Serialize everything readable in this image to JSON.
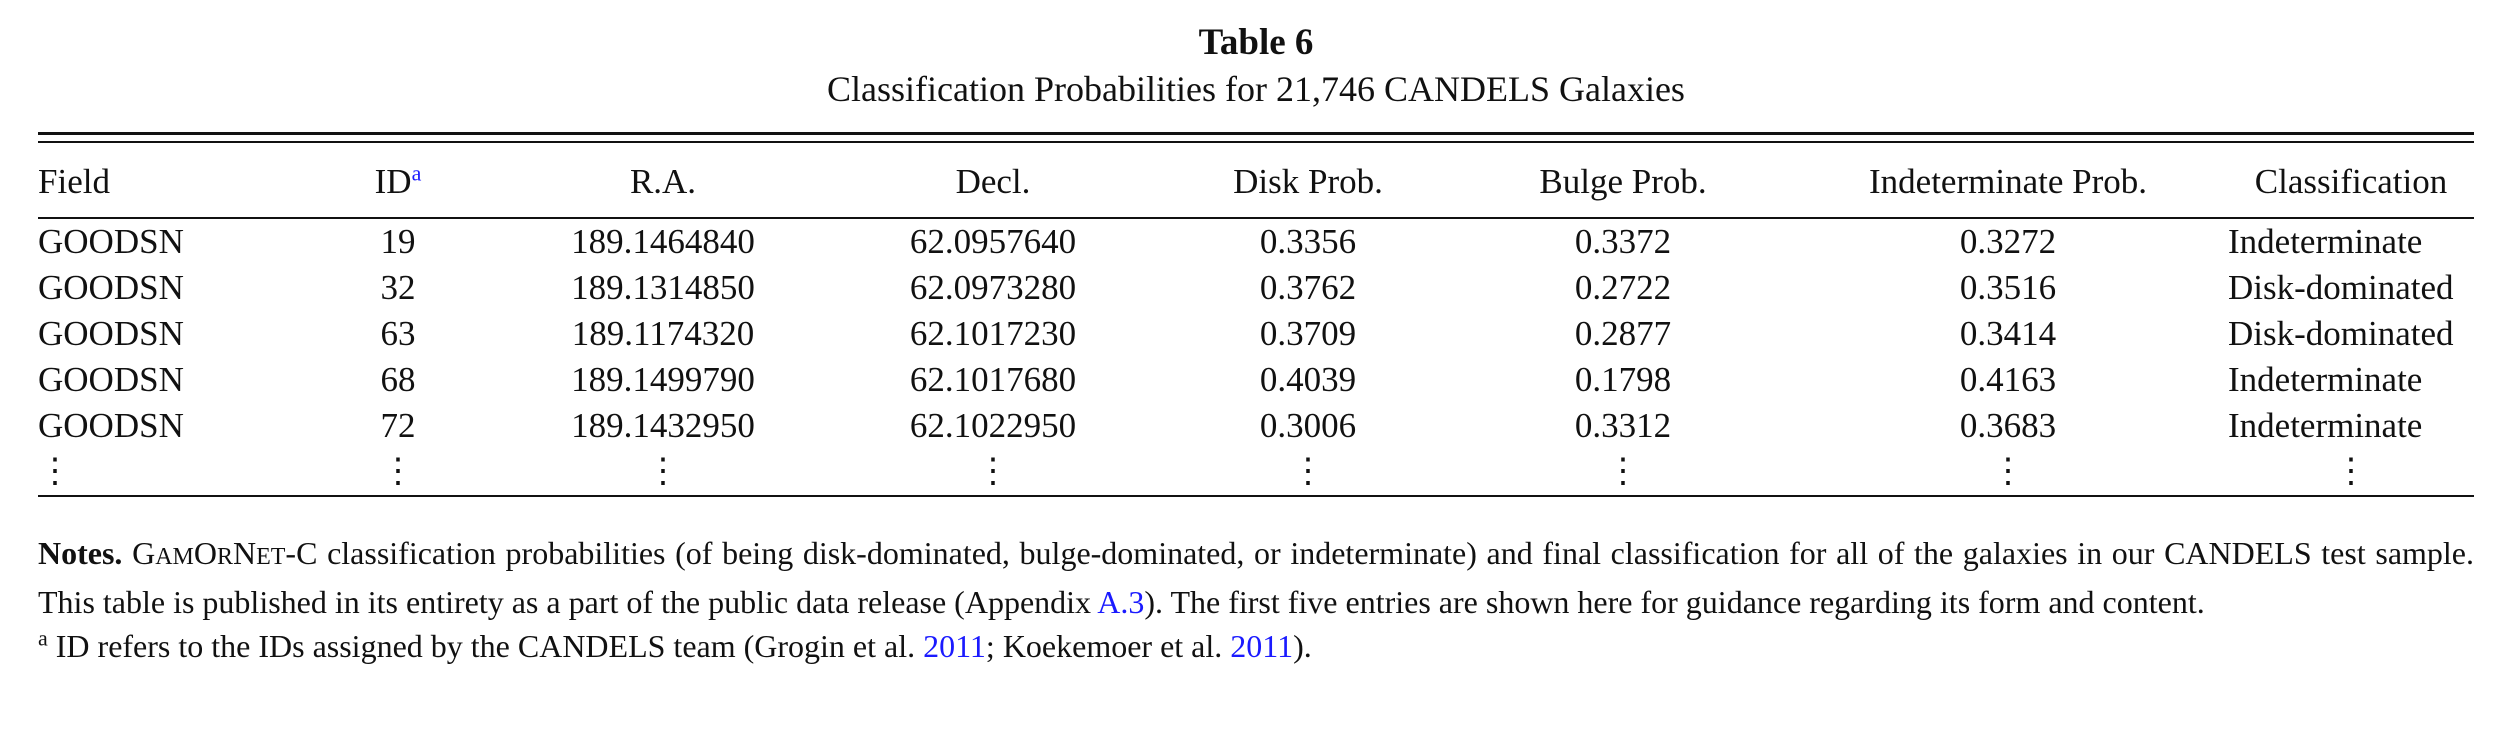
{
  "caption": {
    "table_number": "Table 6",
    "title": "Classification Probabilities for 21,746 CANDELS Galaxies"
  },
  "table": {
    "headers": {
      "field": "Field",
      "id": "ID",
      "id_note_mark": "a",
      "ra": "R.A.",
      "decl": "Decl.",
      "disk_prob": "Disk Prob.",
      "bulge_prob": "Bulge Prob.",
      "indet_prob": "Indeterminate Prob.",
      "classification": "Classification"
    },
    "rows": [
      {
        "field": "GOODSN",
        "id": "19",
        "ra": "189.1464840",
        "decl": "62.0957640",
        "disk": "0.3356",
        "bulge": "0.3372",
        "indet": "0.3272",
        "class": "Indeterminate"
      },
      {
        "field": "GOODSN",
        "id": "32",
        "ra": "189.1314850",
        "decl": "62.0973280",
        "disk": "0.3762",
        "bulge": "0.2722",
        "indet": "0.3516",
        "class": "Disk-dominated"
      },
      {
        "field": "GOODSN",
        "id": "63",
        "ra": "189.1174320",
        "decl": "62.1017230",
        "disk": "0.3709",
        "bulge": "0.2877",
        "indet": "0.3414",
        "class": "Disk-dominated"
      },
      {
        "field": "GOODSN",
        "id": "68",
        "ra": "189.1499790",
        "decl": "62.1017680",
        "disk": "0.4039",
        "bulge": "0.1798",
        "indet": "0.4163",
        "class": "Indeterminate"
      },
      {
        "field": "GOODSN",
        "id": "72",
        "ra": "189.1432950",
        "decl": "62.1022950",
        "disk": "0.3006",
        "bulge": "0.3312",
        "indet": "0.3683",
        "class": "Indeterminate"
      }
    ],
    "ellipsis": "⋮"
  },
  "notes": {
    "label": "Notes.",
    "gamornet_g": "G",
    "gamornet_am": "AM",
    "gamornet_o": "OR",
    "gamornet_n": "N",
    "gamornet_et": "ET",
    "gamornet_suffix": "-C",
    "text_1": " classification probabilities (of being disk-dominated, bulge-dominated, or indeterminate) and final classification for all of the galaxies in our CANDELS test sample. This table is published in its entirety as a part of the public data release (Appendix ",
    "appendix_link": "A.3",
    "text_2": "). The first five entries are shown here for guidance regarding its form and content."
  },
  "footnote": {
    "mark": "a",
    "text_1": " ID refers to the IDs assigned by the CANDELS team (Grogin et al. ",
    "ref_1_year": "2011",
    "text_2": "; Koekemoer et al. ",
    "ref_2_year": "2011",
    "text_3": ")."
  }
}
